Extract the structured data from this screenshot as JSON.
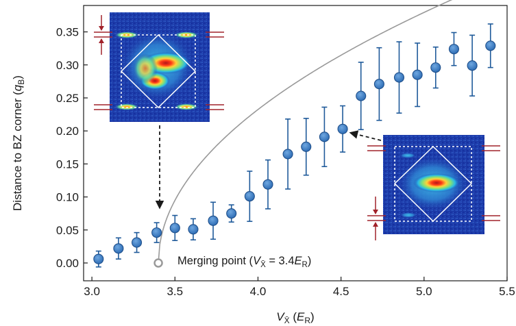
{
  "chart_data": {
    "type": "scatter",
    "xlabel": {
      "main": "V",
      "sub": "X̄",
      "unit_pre": " (",
      "unit_main": "E",
      "unit_sub": "R",
      "unit_post": ")"
    },
    "ylabel": {
      "main": "Distance to BZ corner (",
      "unit_main": "q",
      "unit_sub": "B",
      "unit_post": ")"
    },
    "xlim": [
      2.95,
      5.5
    ],
    "ylim": [
      -0.027,
      0.39
    ],
    "xticks": [
      3.0,
      3.5,
      4.0,
      4.5,
      5.0,
      5.5
    ],
    "xtick_labels": [
      "3.0",
      "3.5",
      "4.0",
      "4.5",
      "5.0",
      "5.5"
    ],
    "yticks": [
      0.0,
      0.05,
      0.1,
      0.15,
      0.2,
      0.25,
      0.3,
      0.35
    ],
    "ytick_labels": [
      "0.00",
      "0.05",
      "0.10",
      "0.15",
      "0.20",
      "0.25",
      "0.30",
      "0.35"
    ],
    "grid": false,
    "series": [
      {
        "kind": "points_with_error_bars",
        "color": "#3f7fc6",
        "error_color": "#1f5a9a",
        "points": [
          {
            "x": 3.04,
            "y": 0.006,
            "err": 0.012
          },
          {
            "x": 3.16,
            "y": 0.022,
            "err": 0.016
          },
          {
            "x": 3.27,
            "y": 0.031,
            "err": 0.015
          },
          {
            "x": 3.39,
            "y": 0.046,
            "err": 0.015
          },
          {
            "x": 3.5,
            "y": 0.053,
            "err": 0.019
          },
          {
            "x": 3.61,
            "y": 0.051,
            "err": 0.016
          },
          {
            "x": 3.73,
            "y": 0.064,
            "err": 0.028
          },
          {
            "x": 3.84,
            "y": 0.075,
            "err": 0.013
          },
          {
            "x": 3.95,
            "y": 0.101,
            "err": 0.038
          },
          {
            "x": 4.06,
            "y": 0.119,
            "err": 0.037
          },
          {
            "x": 4.18,
            "y": 0.165,
            "err": 0.053
          },
          {
            "x": 4.29,
            "y": 0.176,
            "err": 0.043
          },
          {
            "x": 4.4,
            "y": 0.191,
            "err": 0.045
          },
          {
            "x": 4.51,
            "y": 0.203,
            "err": 0.035
          },
          {
            "x": 4.62,
            "y": 0.253,
            "err": 0.051
          },
          {
            "x": 4.73,
            "y": 0.271,
            "err": 0.055
          },
          {
            "x": 4.85,
            "y": 0.281,
            "err": 0.054
          },
          {
            "x": 4.96,
            "y": 0.285,
            "err": 0.048
          },
          {
            "x": 5.07,
            "y": 0.296,
            "err": 0.031
          },
          {
            "x": 5.18,
            "y": 0.324,
            "err": 0.025
          },
          {
            "x": 5.29,
            "y": 0.299,
            "err": 0.046
          },
          {
            "x": 5.4,
            "y": 0.329,
            "err": 0.033
          }
        ]
      },
      {
        "kind": "fit_curve",
        "color": "#999999",
        "x0": 3.4,
        "coef": 0.3
      }
    ],
    "merging_point": {
      "x": 3.4,
      "y": 0.0,
      "label": {
        "text1": "Merging point (",
        "main": "V",
        "sub": "X̄",
        "text2": " = 3.4",
        "e_main": "E",
        "e_sub": "R",
        "text3": ")"
      }
    },
    "insets": [
      {
        "name": "inset-left",
        "type": "absorption-image",
        "dark_red_bars": "top-and-bottom",
        "arrow_to": "merging-region"
      },
      {
        "name": "inset-right",
        "type": "absorption-image",
        "dark_red_bars": "single-cloud",
        "arrow_to": "point-4.51"
      }
    ],
    "colors": {
      "accent_red": "#a1222a",
      "image_bg": "#1c3aa8",
      "axis": "#1a1a1a"
    }
  }
}
